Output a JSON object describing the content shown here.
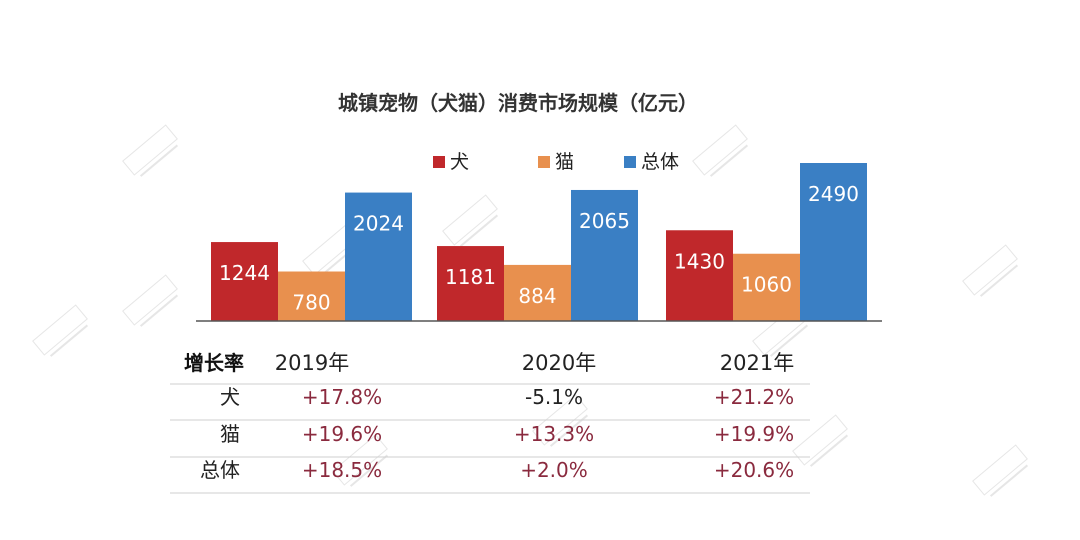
{
  "chart_data": {
    "type": "bar",
    "title": "城镇宠物（犬猫）消费市场规模（亿元）",
    "categories": [
      "2019年",
      "2020年",
      "2021年"
    ],
    "series": [
      {
        "name": "犬",
        "color": "#c0282b",
        "values": [
          1244,
          1181,
          1430
        ]
      },
      {
        "name": "猫",
        "color": "#e8904e",
        "values": [
          780,
          884,
          1060
        ]
      },
      {
        "name": "总体",
        "color": "#3a7fc4",
        "values": [
          2024,
          2065,
          2490
        ]
      }
    ],
    "legend_position": "top",
    "grid": false,
    "ylim": [
      0,
      2490
    ]
  },
  "table": {
    "header": "增长率",
    "rows": [
      {
        "label": "犬",
        "values": [
          "+17.8%",
          "-5.1%",
          "+21.2%"
        ]
      },
      {
        "label": "猫",
        "values": [
          "+19.6%",
          "+13.3%",
          "+19.9%"
        ]
      },
      {
        "label": "总体",
        "values": [
          "+18.5%",
          "+2.0%",
          "+20.6%"
        ]
      }
    ]
  }
}
